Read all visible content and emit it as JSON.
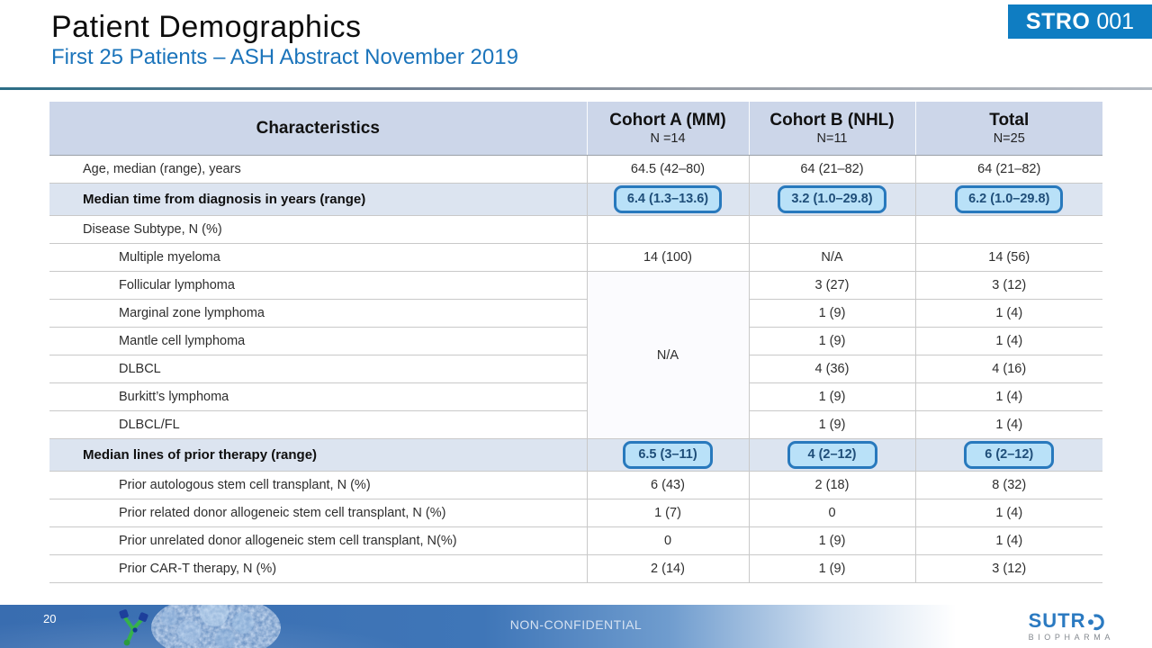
{
  "slide": {
    "title": "Patient Demographics",
    "subtitle": "First 25 Patients – ASH Abstract November 2019",
    "badge": {
      "bold": "STRO",
      "light": "001"
    }
  },
  "table": {
    "header": {
      "characteristics": "Characteristics",
      "cols": [
        {
          "label": "Cohort A (MM)",
          "sub": "N =14"
        },
        {
          "label": "Cohort B (NHL)",
          "sub": "N=11"
        },
        {
          "label": "Total",
          "sub": "N=25"
        }
      ]
    },
    "rows": [
      {
        "label": "Age, median (range), years",
        "indent": 1,
        "style": "normal",
        "values": [
          {
            "t": "64.5 (42–80)"
          },
          {
            "t": "64 (21–82)"
          },
          {
            "t": "64 (21–82)"
          }
        ]
      },
      {
        "label": "Median time from diagnosis in years (range)",
        "indent": 1,
        "style": "highlight",
        "values": [
          {
            "t": "6.4 (1.3–13.6)",
            "boxed": true
          },
          {
            "t": "3.2 (1.0–29.8)",
            "boxed": true
          },
          {
            "t": "6.2 (1.0–29.8)",
            "boxed": true
          }
        ]
      },
      {
        "label": "Disease Subtype, N (%)",
        "indent": 1,
        "style": "normal",
        "values": [
          {
            "t": ""
          },
          {
            "t": ""
          },
          {
            "t": ""
          }
        ]
      },
      {
        "label": "Multiple myeloma",
        "indent": 2,
        "style": "normal",
        "values": [
          {
            "t": "14 (100)"
          },
          {
            "t": "N/A"
          },
          {
            "t": "14 (56)"
          }
        ]
      },
      {
        "label": "Follicular lymphoma",
        "indent": 2,
        "style": "normal",
        "values": [
          {
            "t": "N/A",
            "rowspan": 6,
            "merged": true
          },
          {
            "t": "3 (27)"
          },
          {
            "t": "3 (12)"
          }
        ]
      },
      {
        "label": "Marginal zone lymphoma",
        "indent": 2,
        "style": "normal",
        "values": [
          null,
          {
            "t": "1 (9)"
          },
          {
            "t": "1 (4)"
          }
        ]
      },
      {
        "label": "Mantle cell lymphoma",
        "indent": 2,
        "style": "normal",
        "values": [
          null,
          {
            "t": "1 (9)"
          },
          {
            "t": "1 (4)"
          }
        ]
      },
      {
        "label": "DLBCL",
        "indent": 2,
        "style": "normal",
        "values": [
          null,
          {
            "t": "4 (36)"
          },
          {
            "t": "4 (16)"
          }
        ]
      },
      {
        "label": "Burkitt’s lymphoma",
        "indent": 2,
        "style": "normal",
        "values": [
          null,
          {
            "t": "1 (9)"
          },
          {
            "t": "1 (4)"
          }
        ]
      },
      {
        "label": "DLBCL/FL",
        "indent": 2,
        "style": "normal",
        "values": [
          null,
          {
            "t": "1 (9)"
          },
          {
            "t": "1 (4)"
          }
        ]
      },
      {
        "label": "Median lines of prior therapy (range)",
        "indent": 1,
        "style": "highlight",
        "values": [
          {
            "t": "6.5 (3–11)",
            "boxed": true
          },
          {
            "t": "4 (2–12)",
            "boxed": true
          },
          {
            "t": "6 (2–12)",
            "boxed": true
          }
        ]
      },
      {
        "label": "Prior autologous stem cell transplant, N (%)",
        "indent": 2,
        "style": "normal",
        "values": [
          {
            "t": "6 (43)"
          },
          {
            "t": "2 (18)"
          },
          {
            "t": "8 (32)"
          }
        ]
      },
      {
        "label": "Prior related donor allogeneic stem cell transplant, N (%)",
        "indent": 2,
        "style": "normal",
        "values": [
          {
            "t": "1 (7)"
          },
          {
            "t": "0"
          },
          {
            "t": "1 (4)"
          }
        ]
      },
      {
        "label": "Prior unrelated donor allogeneic stem cell transplant, N(%)",
        "indent": 2,
        "style": "normal",
        "values": [
          {
            "t": "0"
          },
          {
            "t": "1 (9)"
          },
          {
            "t": "1 (4)"
          }
        ]
      },
      {
        "label": "Prior CAR-T therapy, N (%)",
        "indent": 2,
        "style": "normal",
        "values": [
          {
            "t": "2 (14)"
          },
          {
            "t": "1 (9)"
          },
          {
            "t": "3 (12)"
          }
        ]
      }
    ]
  },
  "footer": {
    "page_number": "20",
    "classification": "NON-CONFIDENTIAL",
    "logo": {
      "text": "SUTRO",
      "sub": "BIOPHARMA"
    }
  },
  "colors": {
    "accent_blue": "#1b74bb",
    "badge_blue": "#0f7dc2",
    "table_header_bg": "#ccd6e9",
    "highlight_row_bg": "#dce4f0",
    "value_box_border": "#2879bd",
    "value_box_bg": "#b9e1f8",
    "value_box_text": "#1f4e79",
    "footer_blue": "#3f76b8"
  }
}
